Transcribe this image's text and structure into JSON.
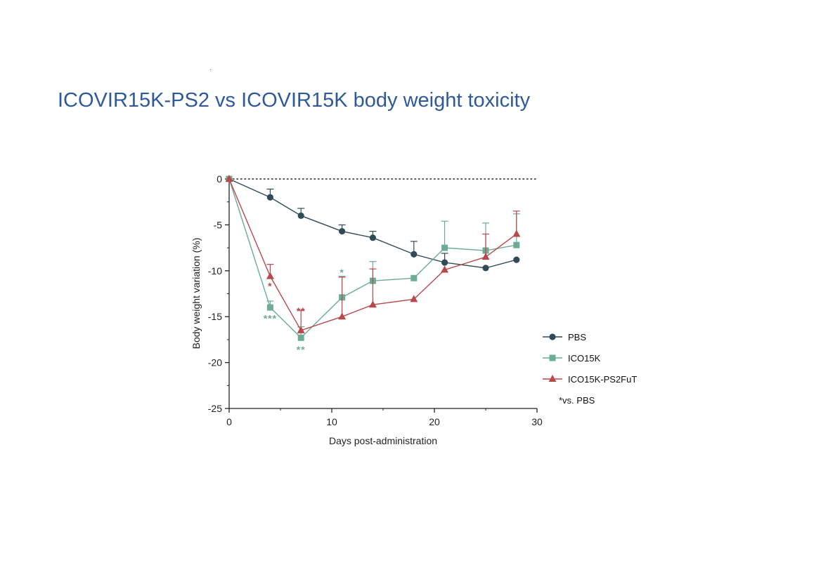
{
  "slide": {
    "title": "ICOVIR15K-PS2 vs ICOVIR15K body weight toxicity"
  },
  "chart_data": {
    "type": "line",
    "title": "",
    "xlabel": "Days post-administration",
    "ylabel": "Body weight variation (%)",
    "xlim": [
      0,
      30
    ],
    "ylim": [
      -25,
      0
    ],
    "xticks": [
      0,
      10,
      20,
      30
    ],
    "yticks": [
      0,
      -5,
      -10,
      -15,
      -20,
      -25
    ],
    "reference_line": {
      "y": 0,
      "style": "dotted"
    },
    "legend_position": "right",
    "legend_note": "*vs. PBS",
    "series": [
      {
        "name": "PBS",
        "marker": "circle",
        "color": "#2f4b56",
        "x": [
          0,
          4,
          7,
          11,
          14,
          18,
          21,
          25,
          28
        ],
        "y": [
          0,
          -2.0,
          -4.0,
          -5.7,
          -6.4,
          -8.2,
          -9.1,
          -9.7,
          -8.8
        ],
        "err": [
          0,
          0.9,
          0.8,
          0.7,
          0.7,
          1.4,
          1.0,
          0,
          0
        ]
      },
      {
        "name": "ICO15K",
        "marker": "square",
        "color": "#6cab95",
        "x": [
          0,
          4,
          7,
          11,
          14,
          18,
          21,
          25,
          28
        ],
        "y": [
          0,
          -14.0,
          -17.3,
          -12.9,
          -11.1,
          -10.8,
          -7.5,
          -7.8,
          -7.2
        ],
        "err": [
          0,
          0.7,
          1.2,
          2.3,
          2.1,
          0,
          2.9,
          3.0,
          3.4
        ]
      },
      {
        "name": "ICO15K-PS2FuT",
        "marker": "triangle",
        "color": "#b9484a",
        "x": [
          0,
          4,
          7,
          11,
          14,
          18,
          21,
          25,
          28
        ],
        "y": [
          0,
          -10.6,
          -16.5,
          -15.0,
          -13.7,
          -13.1,
          -9.9,
          -8.5,
          -6.0
        ],
        "err": [
          0,
          1.3,
          2.2,
          4.3,
          3.9,
          0,
          0,
          2.5,
          2.5
        ]
      }
    ],
    "significance": [
      {
        "label": "*",
        "series": "ICO15K-PS2FuT",
        "x": 4,
        "y": -11.6
      },
      {
        "label": "***",
        "series": "ICO15K",
        "x": 4,
        "y": -15.1
      },
      {
        "label": "**",
        "series": "ICO15K-PS2FuT",
        "x": 7,
        "y": -14.3
      },
      {
        "label": "**",
        "series": "ICO15K",
        "x": 7,
        "y": -18.5
      },
      {
        "label": "*",
        "series": "ICO15K",
        "x": 11,
        "y": -10.1
      }
    ]
  }
}
